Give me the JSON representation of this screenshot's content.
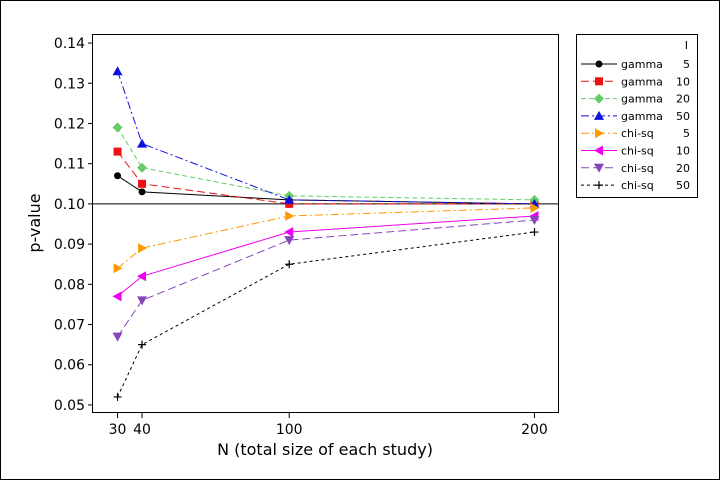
{
  "chart_data": {
    "type": "line",
    "title": "",
    "xlabel": "N (total size of each study)",
    "ylabel": "p-value",
    "x": [
      30,
      40,
      100,
      200
    ],
    "xticks": [
      30,
      40,
      100,
      200
    ],
    "xlim": [
      20,
      210
    ],
    "ylim": [
      0.048,
      0.142
    ],
    "yticks": [
      0.05,
      0.06,
      0.07,
      0.08,
      0.09,
      0.1,
      0.11,
      0.12,
      0.13,
      0.14
    ],
    "ytick_labels": [
      "0.05",
      "0.06",
      "0.07",
      "0.08",
      "0.09",
      "0.10",
      "0.11",
      "0.12",
      "0.13",
      "0.14"
    ],
    "reference_line": 0.1,
    "legend_header": "I",
    "legend_position": "right",
    "series": [
      {
        "name": "gamma",
        "i": "5",
        "color": "#000000",
        "marker": "circle",
        "dash": "solid",
        "values": [
          0.107,
          0.103,
          0.101,
          0.1
        ]
      },
      {
        "name": "gamma",
        "i": "10",
        "color": "#ee1111",
        "marker": "square",
        "dash": "long-dash",
        "values": [
          0.113,
          0.105,
          0.1,
          0.1
        ]
      },
      {
        "name": "gamma",
        "i": "20",
        "color": "#66cc66",
        "marker": "diamond",
        "dash": "dash",
        "values": [
          0.119,
          0.109,
          0.102,
          0.101
        ]
      },
      {
        "name": "gamma",
        "i": "50",
        "color": "#1111dd",
        "marker": "triangle-up",
        "dash": "dash-dot",
        "values": [
          0.133,
          0.115,
          0.101,
          0.1
        ]
      },
      {
        "name": "chi-sq",
        "i": "5",
        "color": "#ff9900",
        "marker": "triangle-right",
        "dash": "dash-dot",
        "values": [
          0.084,
          0.089,
          0.097,
          0.099
        ]
      },
      {
        "name": "chi-sq",
        "i": "10",
        "color": "#ee00ee",
        "marker": "triangle-left",
        "dash": "solid",
        "values": [
          0.077,
          0.082,
          0.093,
          0.097
        ]
      },
      {
        "name": "chi-sq",
        "i": "20",
        "color": "#8844bb",
        "marker": "triangle-down",
        "dash": "long-dash",
        "values": [
          0.067,
          0.076,
          0.091,
          0.096
        ]
      },
      {
        "name": "chi-sq",
        "i": "50",
        "color": "#000000",
        "marker": "plus",
        "dash": "short-dash",
        "values": [
          0.052,
          0.065,
          0.085,
          0.093
        ]
      }
    ]
  }
}
